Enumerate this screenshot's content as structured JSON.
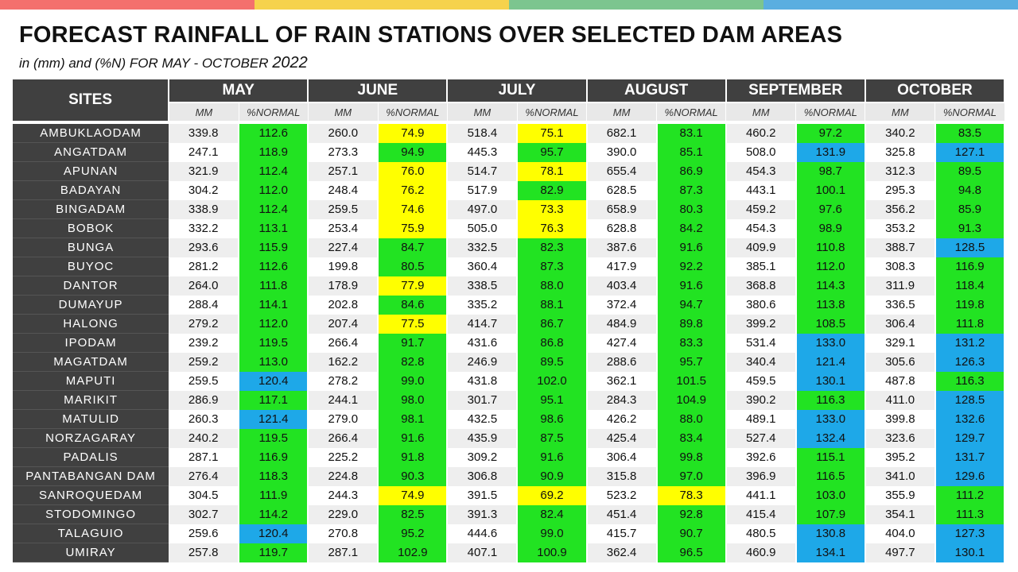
{
  "header": {
    "title": "FORECAST RAINFALL OF RAIN STATIONS OVER SELECTED DAM AREAS",
    "subtitle_prefix": "in (mm) and (%N) FOR MAY - OCTOBER ",
    "subtitle_year": "2022"
  },
  "colors": {
    "topbar": [
      "#f4706d",
      "#f6d24c",
      "#7cc58f",
      "#5aaee0"
    ],
    "header_bg": "#404040",
    "green": "#22e322",
    "yellow": "#ffff00",
    "blue": "#1ea8e8"
  },
  "table": {
    "sites_header": "SITES",
    "sub_mm": "MM",
    "sub_pct": "%NORMAL",
    "months": [
      "MAY",
      "JUNE",
      "JULY",
      "AUGUST",
      "SEPTEMBER",
      "OCTOBER"
    ],
    "rows": [
      {
        "site": "AMBUKLAODAM",
        "values": [
          [
            "339.8",
            "112.6",
            "green"
          ],
          [
            "260.0",
            "74.9",
            "yellow"
          ],
          [
            "518.4",
            "75.1",
            "yellow"
          ],
          [
            "682.1",
            "83.1",
            "green"
          ],
          [
            "460.2",
            "97.2",
            "green"
          ],
          [
            "340.2",
            "83.5",
            "green"
          ]
        ]
      },
      {
        "site": "ANGATDAM",
        "values": [
          [
            "247.1",
            "118.9",
            "green"
          ],
          [
            "273.3",
            "94.9",
            "green"
          ],
          [
            "445.3",
            "95.7",
            "green"
          ],
          [
            "390.0",
            "85.1",
            "green"
          ],
          [
            "508.0",
            "131.9",
            "blue"
          ],
          [
            "325.8",
            "127.1",
            "blue"
          ]
        ]
      },
      {
        "site": "APUNAN",
        "values": [
          [
            "321.9",
            "112.4",
            "green"
          ],
          [
            "257.1",
            "76.0",
            "yellow"
          ],
          [
            "514.7",
            "78.1",
            "yellow"
          ],
          [
            "655.4",
            "86.9",
            "green"
          ],
          [
            "454.3",
            "98.7",
            "green"
          ],
          [
            "312.3",
            "89.5",
            "green"
          ]
        ]
      },
      {
        "site": "BADAYAN",
        "values": [
          [
            "304.2",
            "112.0",
            "green"
          ],
          [
            "248.4",
            "76.2",
            "yellow"
          ],
          [
            "517.9",
            "82.9",
            "green"
          ],
          [
            "628.5",
            "87.3",
            "green"
          ],
          [
            "443.1",
            "100.1",
            "green"
          ],
          [
            "295.3",
            "94.8",
            "green"
          ]
        ]
      },
      {
        "site": "BINGADAM",
        "values": [
          [
            "338.9",
            "112.4",
            "green"
          ],
          [
            "259.5",
            "74.6",
            "yellow"
          ],
          [
            "497.0",
            "73.3",
            "yellow"
          ],
          [
            "658.9",
            "80.3",
            "green"
          ],
          [
            "459.2",
            "97.6",
            "green"
          ],
          [
            "356.2",
            "85.9",
            "green"
          ]
        ]
      },
      {
        "site": "BOBOK",
        "values": [
          [
            "332.2",
            "113.1",
            "green"
          ],
          [
            "253.4",
            "75.9",
            "yellow"
          ],
          [
            "505.0",
            "76.3",
            "yellow"
          ],
          [
            "628.8",
            "84.2",
            "green"
          ],
          [
            "454.3",
            "98.9",
            "green"
          ],
          [
            "353.2",
            "91.3",
            "green"
          ]
        ]
      },
      {
        "site": "BUNGA",
        "values": [
          [
            "293.6",
            "115.9",
            "green"
          ],
          [
            "227.4",
            "84.7",
            "green"
          ],
          [
            "332.5",
            "82.3",
            "green"
          ],
          [
            "387.6",
            "91.6",
            "green"
          ],
          [
            "409.9",
            "110.8",
            "green"
          ],
          [
            "388.7",
            "128.5",
            "blue"
          ]
        ]
      },
      {
        "site": "BUYOC",
        "values": [
          [
            "281.2",
            "112.6",
            "green"
          ],
          [
            "199.8",
            "80.5",
            "green"
          ],
          [
            "360.4",
            "87.3",
            "green"
          ],
          [
            "417.9",
            "92.2",
            "green"
          ],
          [
            "385.1",
            "112.0",
            "green"
          ],
          [
            "308.3",
            "116.9",
            "green"
          ]
        ]
      },
      {
        "site": "DANTOR",
        "values": [
          [
            "264.0",
            "111.8",
            "green"
          ],
          [
            "178.9",
            "77.9",
            "yellow"
          ],
          [
            "338.5",
            "88.0",
            "green"
          ],
          [
            "403.4",
            "91.6",
            "green"
          ],
          [
            "368.8",
            "114.3",
            "green"
          ],
          [
            "311.9",
            "118.4",
            "green"
          ]
        ]
      },
      {
        "site": "DUMAYUP",
        "values": [
          [
            "288.4",
            "114.1",
            "green"
          ],
          [
            "202.8",
            "84.6",
            "green"
          ],
          [
            "335.2",
            "88.1",
            "green"
          ],
          [
            "372.4",
            "94.7",
            "green"
          ],
          [
            "380.6",
            "113.8",
            "green"
          ],
          [
            "336.5",
            "119.8",
            "green"
          ]
        ]
      },
      {
        "site": "HALONG",
        "values": [
          [
            "279.2",
            "112.0",
            "green"
          ],
          [
            "207.4",
            "77.5",
            "yellow"
          ],
          [
            "414.7",
            "86.7",
            "green"
          ],
          [
            "484.9",
            "89.8",
            "green"
          ],
          [
            "399.2",
            "108.5",
            "green"
          ],
          [
            "306.4",
            "111.8",
            "green"
          ]
        ]
      },
      {
        "site": "IPODAM",
        "values": [
          [
            "239.2",
            "119.5",
            "green"
          ],
          [
            "266.4",
            "91.7",
            "green"
          ],
          [
            "431.6",
            "86.8",
            "green"
          ],
          [
            "427.4",
            "83.3",
            "green"
          ],
          [
            "531.4",
            "133.0",
            "blue"
          ],
          [
            "329.1",
            "131.2",
            "blue"
          ]
        ]
      },
      {
        "site": "MAGATDAM",
        "values": [
          [
            "259.2",
            "113.0",
            "green"
          ],
          [
            "162.2",
            "82.8",
            "green"
          ],
          [
            "246.9",
            "89.5",
            "green"
          ],
          [
            "288.6",
            "95.7",
            "green"
          ],
          [
            "340.4",
            "121.4",
            "blue"
          ],
          [
            "305.6",
            "126.3",
            "blue"
          ]
        ]
      },
      {
        "site": "MAPUTI",
        "values": [
          [
            "259.5",
            "120.4",
            "blue"
          ],
          [
            "278.2",
            "99.0",
            "green"
          ],
          [
            "431.8",
            "102.0",
            "green"
          ],
          [
            "362.1",
            "101.5",
            "green"
          ],
          [
            "459.5",
            "130.1",
            "blue"
          ],
          [
            "487.8",
            "116.3",
            "green"
          ]
        ]
      },
      {
        "site": "MARIKIT",
        "values": [
          [
            "286.9",
            "117.1",
            "green"
          ],
          [
            "244.1",
            "98.0",
            "green"
          ],
          [
            "301.7",
            "95.1",
            "green"
          ],
          [
            "284.3",
            "104.9",
            "green"
          ],
          [
            "390.2",
            "116.3",
            "green"
          ],
          [
            "411.0",
            "128.5",
            "blue"
          ]
        ]
      },
      {
        "site": "MATULID",
        "values": [
          [
            "260.3",
            "121.4",
            "blue"
          ],
          [
            "279.0",
            "98.1",
            "green"
          ],
          [
            "432.5",
            "98.6",
            "green"
          ],
          [
            "426.2",
            "88.0",
            "green"
          ],
          [
            "489.1",
            "133.0",
            "blue"
          ],
          [
            "399.8",
            "132.6",
            "blue"
          ]
        ]
      },
      {
        "site": "NORZAGARAY",
        "values": [
          [
            "240.2",
            "119.5",
            "green"
          ],
          [
            "266.4",
            "91.6",
            "green"
          ],
          [
            "435.9",
            "87.5",
            "green"
          ],
          [
            "425.4",
            "83.4",
            "green"
          ],
          [
            "527.4",
            "132.4",
            "blue"
          ],
          [
            "323.6",
            "129.7",
            "blue"
          ]
        ]
      },
      {
        "site": "PADALIS",
        "values": [
          [
            "287.1",
            "116.9",
            "green"
          ],
          [
            "225.2",
            "91.8",
            "green"
          ],
          [
            "309.2",
            "91.6",
            "green"
          ],
          [
            "306.4",
            "99.8",
            "green"
          ],
          [
            "392.6",
            "115.1",
            "green"
          ],
          [
            "395.2",
            "131.7",
            "blue"
          ]
        ]
      },
      {
        "site": "PANTABANGAN DAM",
        "values": [
          [
            "276.4",
            "118.3",
            "green"
          ],
          [
            "224.8",
            "90.3",
            "green"
          ],
          [
            "306.8",
            "90.9",
            "green"
          ],
          [
            "315.8",
            "97.0",
            "green"
          ],
          [
            "396.9",
            "116.5",
            "green"
          ],
          [
            "341.0",
            "129.6",
            "blue"
          ]
        ]
      },
      {
        "site": "SANROQUEDAM",
        "values": [
          [
            "304.5",
            "111.9",
            "green"
          ],
          [
            "244.3",
            "74.9",
            "yellow"
          ],
          [
            "391.5",
            "69.2",
            "yellow"
          ],
          [
            "523.2",
            "78.3",
            "yellow"
          ],
          [
            "441.1",
            "103.0",
            "green"
          ],
          [
            "355.9",
            "111.2",
            "green"
          ]
        ]
      },
      {
        "site": "STODOMINGO",
        "values": [
          [
            "302.7",
            "114.2",
            "green"
          ],
          [
            "229.0",
            "82.5",
            "green"
          ],
          [
            "391.3",
            "82.4",
            "green"
          ],
          [
            "451.4",
            "92.8",
            "green"
          ],
          [
            "415.4",
            "107.9",
            "green"
          ],
          [
            "354.1",
            "111.3",
            "green"
          ]
        ]
      },
      {
        "site": "TALAGUIO",
        "values": [
          [
            "259.6",
            "120.4",
            "blue"
          ],
          [
            "270.8",
            "95.2",
            "green"
          ],
          [
            "444.6",
            "99.0",
            "green"
          ],
          [
            "415.7",
            "90.7",
            "green"
          ],
          [
            "480.5",
            "130.8",
            "blue"
          ],
          [
            "404.0",
            "127.3",
            "blue"
          ]
        ]
      },
      {
        "site": "UMIRAY",
        "values": [
          [
            "257.8",
            "119.7",
            "green"
          ],
          [
            "287.1",
            "102.9",
            "green"
          ],
          [
            "407.1",
            "100.9",
            "green"
          ],
          [
            "362.4",
            "96.5",
            "green"
          ],
          [
            "460.9",
            "134.1",
            "blue"
          ],
          [
            "497.7",
            "130.1",
            "blue"
          ]
        ]
      }
    ]
  }
}
